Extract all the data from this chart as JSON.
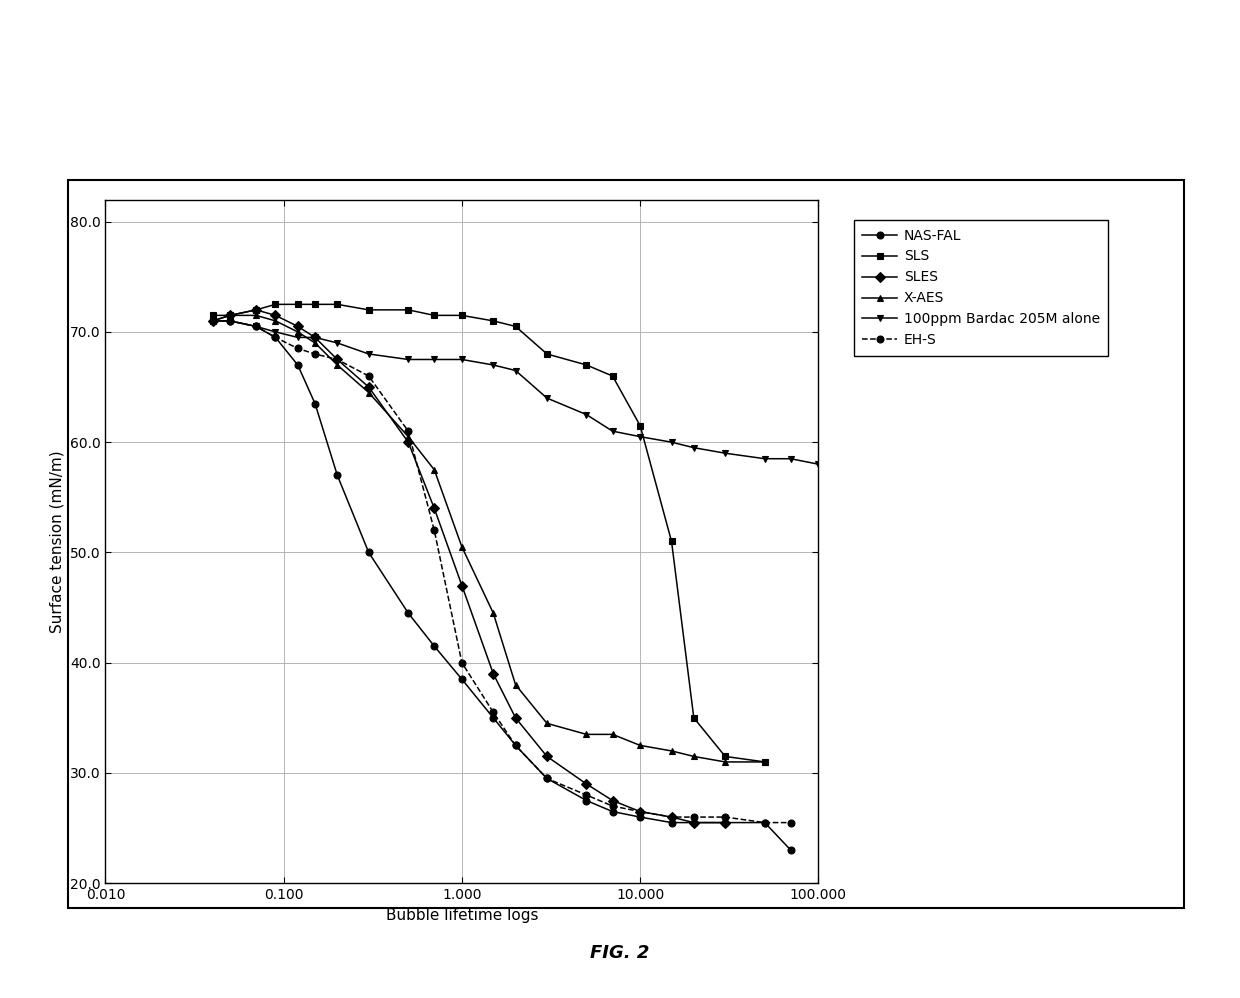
{
  "title": "FIG. 2",
  "xlabel": "Bubble lifetime logs",
  "ylabel": "Surface tension (mN/m)",
  "xlim": [
    0.01,
    100.0
  ],
  "ylim": [
    20.0,
    82.0
  ],
  "yticks": [
    20.0,
    30.0,
    40.0,
    50.0,
    60.0,
    70.0,
    80.0
  ],
  "xtick_positions": [
    0.01,
    0.1,
    1.0,
    10.0,
    100.0
  ],
  "xtick_labels": [
    "0.010",
    "0.100",
    "1.000",
    "10.000",
    "100.000"
  ],
  "series": [
    {
      "label": "NAS-FAL",
      "marker": "o",
      "linestyle": "-",
      "markersize": 5,
      "x": [
        0.04,
        0.05,
        0.07,
        0.09,
        0.12,
        0.15,
        0.2,
        0.3,
        0.5,
        0.7,
        1.0,
        1.5,
        2.0,
        3.0,
        5.0,
        7.0,
        10.0,
        15.0,
        20.0,
        30.0,
        50.0,
        70.0
      ],
      "y": [
        71.0,
        71.0,
        70.5,
        69.5,
        67.0,
        63.5,
        57.0,
        50.0,
        44.5,
        41.5,
        38.5,
        35.0,
        32.5,
        29.5,
        27.5,
        26.5,
        26.0,
        25.5,
        25.5,
        25.5,
        25.5,
        23.0
      ]
    },
    {
      "label": "SLS",
      "marker": "s",
      "linestyle": "-",
      "markersize": 5,
      "x": [
        0.04,
        0.05,
        0.07,
        0.09,
        0.12,
        0.15,
        0.2,
        0.3,
        0.5,
        0.7,
        1.0,
        1.5,
        2.0,
        3.0,
        5.0,
        7.0,
        10.0,
        15.0,
        20.0,
        30.0,
        50.0
      ],
      "y": [
        71.5,
        71.5,
        72.0,
        72.5,
        72.5,
        72.5,
        72.5,
        72.0,
        72.0,
        71.5,
        71.5,
        71.0,
        70.5,
        68.0,
        67.0,
        66.0,
        61.5,
        51.0,
        35.0,
        31.5,
        31.0
      ]
    },
    {
      "label": "SLES",
      "marker": "D",
      "linestyle": "-",
      "markersize": 5,
      "x": [
        0.04,
        0.05,
        0.07,
        0.09,
        0.12,
        0.15,
        0.2,
        0.3,
        0.5,
        0.7,
        1.0,
        1.5,
        2.0,
        3.0,
        5.0,
        7.0,
        10.0,
        15.0,
        20.0,
        30.0
      ],
      "y": [
        71.0,
        71.5,
        72.0,
        71.5,
        70.5,
        69.5,
        67.5,
        65.0,
        60.0,
        54.0,
        47.0,
        39.0,
        35.0,
        31.5,
        29.0,
        27.5,
        26.5,
        26.0,
        25.5,
        25.5
      ]
    },
    {
      "label": "X-AES",
      "marker": "^",
      "linestyle": "-",
      "markersize": 5,
      "x": [
        0.04,
        0.05,
        0.07,
        0.09,
        0.12,
        0.15,
        0.2,
        0.3,
        0.5,
        0.7,
        1.0,
        1.5,
        2.0,
        3.0,
        5.0,
        7.0,
        10.0,
        15.0,
        20.0,
        30.0,
        50.0
      ],
      "y": [
        71.0,
        71.5,
        71.5,
        71.0,
        70.0,
        69.0,
        67.0,
        64.5,
        60.5,
        57.5,
        50.5,
        44.5,
        38.0,
        34.5,
        33.5,
        33.5,
        32.5,
        32.0,
        31.5,
        31.0,
        31.0
      ]
    },
    {
      "label": "100ppm Bardac 205M alone",
      "marker": "v",
      "linestyle": "-",
      "markersize": 5,
      "x": [
        0.04,
        0.05,
        0.07,
        0.09,
        0.12,
        0.15,
        0.2,
        0.3,
        0.5,
        0.7,
        1.0,
        1.5,
        2.0,
        3.0,
        5.0,
        7.0,
        10.0,
        15.0,
        20.0,
        30.0,
        50.0,
        70.0,
        100.0
      ],
      "y": [
        71.0,
        71.0,
        70.5,
        70.0,
        69.5,
        69.5,
        69.0,
        68.0,
        67.5,
        67.5,
        67.5,
        67.0,
        66.5,
        64.0,
        62.5,
        61.0,
        60.5,
        60.0,
        59.5,
        59.0,
        58.5,
        58.5,
        58.0
      ]
    },
    {
      "label": "EH-S",
      "marker": "o",
      "linestyle": "--",
      "markersize": 5,
      "x": [
        0.04,
        0.05,
        0.07,
        0.09,
        0.12,
        0.15,
        0.2,
        0.3,
        0.5,
        0.7,
        1.0,
        1.5,
        2.0,
        3.0,
        5.0,
        7.0,
        10.0,
        15.0,
        20.0,
        30.0,
        50.0,
        70.0
      ],
      "y": [
        71.0,
        71.0,
        70.5,
        69.5,
        68.5,
        68.0,
        67.5,
        66.0,
        61.0,
        52.0,
        40.0,
        35.5,
        32.5,
        29.5,
        28.0,
        27.0,
        26.5,
        26.0,
        26.0,
        26.0,
        25.5,
        25.5
      ]
    }
  ],
  "fig_label": "FIG. 2",
  "outer_box_color": "#000000",
  "line_color": "#000000",
  "grid_color": "#aaaaaa",
  "tick_fontsize": 10,
  "label_fontsize": 11,
  "legend_fontsize": 10
}
